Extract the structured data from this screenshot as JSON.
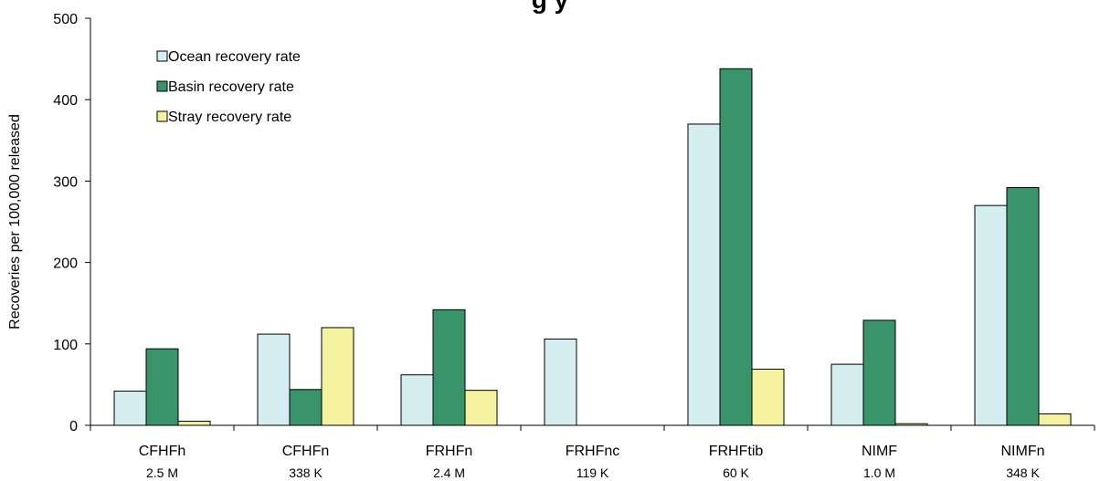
{
  "chart_data": {
    "type": "bar",
    "title": "g         y",
    "ylabel": "Recoveries per 100,000 released",
    "xlabel": "",
    "ylim": [
      0,
      500
    ],
    "yticks": [
      "0",
      "100",
      "200",
      "300",
      "400",
      "500"
    ],
    "categories": [
      "CFHFh",
      "CFHFn",
      "FRHFn",
      "FRHFnc",
      "FRHFtib",
      "NIMF",
      "NIMFn"
    ],
    "sublabels": [
      "2.5 M",
      "338 K",
      "2.4 M",
      "119 K",
      "60 K",
      "1.0 M",
      "348 K"
    ],
    "series": [
      {
        "name": "Ocean recovery rate",
        "color": "#d4eef2",
        "values": [
          42,
          112,
          62,
          106,
          370,
          75,
          270
        ]
      },
      {
        "name": "Basin recovery rate",
        "color": "#3a946a",
        "values": [
          94,
          44,
          142,
          null,
          438,
          129,
          292
        ]
      },
      {
        "name": "Stray recovery rate",
        "color": "#f4f29e",
        "values": [
          5,
          120,
          43,
          null,
          69,
          2,
          14
        ]
      }
    ],
    "legend_position": "top-left",
    "grid": false
  }
}
